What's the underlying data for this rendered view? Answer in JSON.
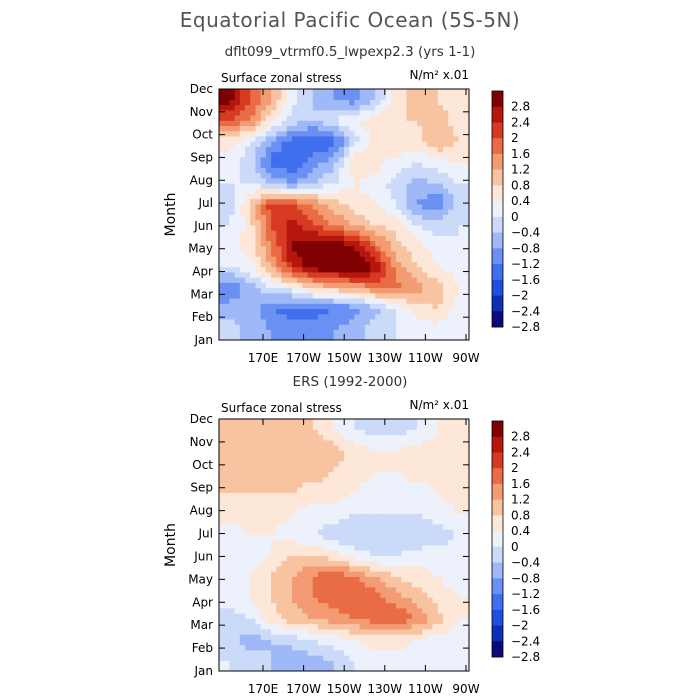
{
  "page": {
    "title": "Equatorial Pacific Ocean (5S-5N)",
    "colors": {
      "background": "#ffffff",
      "text": "#000000"
    }
  },
  "chart_data": [
    {
      "type": "heatmap",
      "title": "dflt099_vtrmf0.5_lwpexp2.3 (yrs 1-1)",
      "variable_label": "Surface zonal stress",
      "units_label": "N/m² x.01",
      "ylabel": "Month",
      "x_ticks": [
        "170E",
        "170W",
        "150W",
        "130W",
        "110W",
        "90W"
      ],
      "y_ticks": [
        "Jan",
        "Feb",
        "Mar",
        "Apr",
        "May",
        "Jun",
        "Jul",
        "Aug",
        "Sep",
        "Oct",
        "Nov",
        "Dec"
      ],
      "colorbar_levels": [
        -2.8,
        -2.4,
        -2,
        -1.6,
        -1.2,
        -0.8,
        -0.4,
        0,
        0.4,
        0.8,
        1.2,
        1.6,
        2,
        2.4,
        2.8
      ],
      "colorbar_labels": [
        "2.8",
        "2.4",
        "2",
        "1.6",
        "1.2",
        "0.8",
        "0.4",
        "0",
        "−0.4",
        "−0.8",
        "−1.2",
        "−1.6",
        "−2",
        "−2.4",
        "−2.8"
      ],
      "grid": [
        [
          -0.6,
          -1.0,
          -1.2,
          -1.4,
          -1.4,
          -1.2,
          -1.0,
          -0.6,
          -0.4,
          -0.2,
          -0.2,
          -0.2
        ],
        [
          -1.0,
          -0.8,
          -1.6,
          -1.8,
          -1.8,
          -1.6,
          -1.4,
          -1.0,
          -0.4,
          0.2,
          0.4,
          -0.2
        ],
        [
          -1.6,
          -1.0,
          -0.4,
          -0.2,
          0.4,
          0.6,
          0.8,
          1.2,
          1.4,
          1.0,
          0.6,
          0.0
        ],
        [
          -0.4,
          -0.2,
          0.8,
          2.0,
          2.6,
          2.8,
          3.0,
          2.4,
          1.0,
          0.4,
          0.0,
          -0.2
        ],
        [
          -0.2,
          0.2,
          1.2,
          2.4,
          2.8,
          2.8,
          2.4,
          1.4,
          0.6,
          0.2,
          -0.2,
          -0.4
        ],
        [
          -0.4,
          0.2,
          1.6,
          2.2,
          1.6,
          1.2,
          0.8,
          0.4,
          0.2,
          -0.4,
          -0.6,
          -0.4
        ],
        [
          -0.6,
          0.4,
          1.8,
          1.6,
          1.2,
          0.6,
          0.2,
          0.0,
          -0.4,
          -1.2,
          -1.6,
          -0.6
        ],
        [
          -0.4,
          -0.4,
          -0.8,
          -1.2,
          -0.8,
          -0.4,
          0.0,
          -0.2,
          -0.6,
          -1.0,
          -0.8,
          -0.4
        ],
        [
          -0.2,
          -0.6,
          -1.8,
          -2.0,
          -1.4,
          -1.0,
          0.4,
          0.2,
          -0.2,
          -0.4,
          -0.2,
          0.0
        ],
        [
          0.2,
          -0.4,
          -1.2,
          -1.8,
          -2.0,
          -1.8,
          -0.6,
          0.2,
          0.4,
          0.2,
          0.8,
          0.4
        ],
        [
          1.6,
          1.2,
          0.2,
          -0.6,
          -0.8,
          -0.4,
          0.0,
          0.2,
          0.4,
          0.4,
          0.6,
          0.2
        ],
        [
          2.6,
          1.6,
          0.8,
          -0.2,
          -0.8,
          -1.2,
          -1.4,
          -0.8,
          0.2,
          0.6,
          0.4,
          0.2
        ]
      ]
    },
    {
      "type": "heatmap",
      "title": "ERS (1992-2000)",
      "variable_label": "Surface zonal stress",
      "units_label": "N/m² x.01",
      "ylabel": "Month",
      "x_ticks": [
        "170E",
        "170W",
        "150W",
        "130W",
        "110W",
        "90W"
      ],
      "y_ticks": [
        "Jan",
        "Feb",
        "Mar",
        "Apr",
        "May",
        "Jun",
        "Jul",
        "Aug",
        "Sep",
        "Oct",
        "Nov",
        "Dec"
      ],
      "colorbar_levels": [
        -2.8,
        -2.4,
        -2,
        -1.6,
        -1.2,
        -0.8,
        -0.4,
        0,
        0.4,
        0.8,
        1.2,
        1.6,
        2,
        2.4,
        2.8
      ],
      "colorbar_labels": [
        "2.8",
        "2.4",
        "2",
        "1.6",
        "1.2",
        "0.8",
        "0.4",
        "0",
        "−0.4",
        "−0.8",
        "−1.2",
        "−1.6",
        "−2",
        "−2.4",
        "−2.8"
      ],
      "grid": [
        [
          -0.4,
          -0.6,
          -0.8,
          -1.2,
          -1.0,
          -0.8,
          -0.4,
          -0.2,
          -0.2,
          -0.2,
          0.0,
          -0.2
        ],
        [
          -0.6,
          -1.0,
          -0.8,
          -0.6,
          -0.4,
          -0.2,
          0.0,
          0.2,
          0.2,
          0.0,
          -0.2,
          -0.2
        ],
        [
          -0.6,
          -0.4,
          0.2,
          0.6,
          0.8,
          1.0,
          1.2,
          1.4,
          1.6,
          1.2,
          0.6,
          0.0
        ],
        [
          -0.2,
          0.0,
          0.4,
          0.8,
          1.2,
          1.4,
          1.6,
          1.4,
          1.0,
          0.6,
          0.2,
          0.0
        ],
        [
          -0.2,
          0.0,
          0.4,
          0.8,
          1.2,
          1.6,
          1.2,
          0.8,
          0.4,
          0.2,
          0.0,
          -0.2
        ],
        [
          -0.2,
          -0.2,
          0.0,
          0.4,
          0.4,
          0.2,
          -0.2,
          -0.4,
          -0.4,
          -0.2,
          -0.2,
          -0.2
        ],
        [
          -0.2,
          0.0,
          0.0,
          -0.2,
          -0.4,
          -0.6,
          -0.8,
          -0.8,
          -0.6,
          -0.8,
          -0.6,
          -0.4
        ],
        [
          0.2,
          0.2,
          0.2,
          0.0,
          -0.2,
          -0.2,
          -0.4,
          -0.4,
          -0.4,
          -0.4,
          -0.2,
          0.0
        ],
        [
          0.4,
          0.4,
          0.4,
          0.4,
          0.2,
          0.2,
          0.0,
          -0.2,
          -0.2,
          -0.2,
          0.0,
          0.2
        ],
        [
          0.4,
          0.6,
          0.6,
          0.6,
          0.6,
          0.4,
          0.2,
          0.0,
          0.0,
          0.2,
          0.2,
          0.2
        ],
        [
          0.4,
          0.6,
          0.8,
          0.8,
          0.8,
          0.6,
          0.2,
          0.0,
          0.0,
          0.2,
          0.2,
          0.0
        ],
        [
          0.4,
          0.4,
          0.4,
          0.6,
          0.4,
          0.0,
          -0.4,
          -0.6,
          -0.6,
          -0.4,
          0.0,
          0.2
        ]
      ]
    }
  ]
}
